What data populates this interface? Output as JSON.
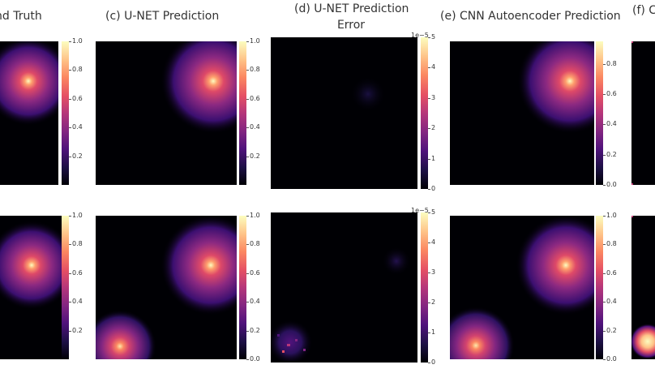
{
  "figure": {
    "columns": [
      {
        "id": "b",
        "title": [
          "nd Truth"
        ]
      },
      {
        "id": "c",
        "title": [
          "(c) U-NET Prediction"
        ]
      },
      {
        "id": "d",
        "title": [
          "(d) U-NET Prediction",
          "Error"
        ]
      },
      {
        "id": "e",
        "title": [
          "(e) CNN Autoencoder Prediction"
        ]
      },
      {
        "id": "f",
        "title": [
          "(f) C"
        ]
      }
    ],
    "colormap": "magma",
    "colorbars": {
      "b_top": {
        "ticks": [
          "1.0",
          "0.8",
          "0.6",
          "0.4",
          "0.2"
        ],
        "offset": ""
      },
      "c_top": {
        "ticks": [
          "1.0",
          "0.8",
          "0.6",
          "0.4",
          "0.2"
        ],
        "offset": ""
      },
      "d_top": {
        "ticks": [
          "5",
          "4",
          "3",
          "2",
          "1",
          "0"
        ],
        "offset": "1e−5"
      },
      "e_top": {
        "ticks": [
          "0.8",
          "0.6",
          "0.4",
          "0.2",
          "0.0"
        ],
        "offset": ""
      },
      "b_bot": {
        "ticks": [
          "1.0",
          "0.8",
          "0.6",
          "0.4",
          "0.2"
        ],
        "offset": ""
      },
      "c_bot": {
        "ticks": [
          "1.0",
          "0.8",
          "0.6",
          "0.4",
          "0.2",
          "0.0"
        ],
        "offset": ""
      },
      "d_bot": {
        "ticks": [
          "5",
          "4",
          "3",
          "2",
          "1",
          "0"
        ],
        "offset": "1e−5"
      },
      "e_bot": {
        "ticks": [
          "1.0",
          "0.8",
          "0.6",
          "0.4",
          "0.2",
          "0.0"
        ],
        "offset": ""
      }
    },
    "tick_values": {
      "b_top": [
        1.0,
        0.8,
        0.6,
        0.4,
        0.2
      ],
      "c_top": [
        1.0,
        0.8,
        0.6,
        0.4,
        0.2
      ],
      "d_top": [
        5,
        4,
        3,
        2,
        1,
        0
      ],
      "e_top": [
        0.8,
        0.6,
        0.4,
        0.2,
        0.0
      ],
      "b_bot": [
        1.0,
        0.8,
        0.6,
        0.4,
        0.2
      ],
      "c_bot": [
        1.0,
        0.8,
        0.6,
        0.4,
        0.2,
        0.0
      ],
      "d_bot": [
        5,
        4,
        3,
        2,
        1,
        0
      ],
      "e_bot": [
        1.0,
        0.8,
        0.6,
        0.4,
        0.2,
        0.0
      ]
    },
    "colorbar_max": {
      "b_top": 1.0,
      "c_top": 1.0,
      "d_top": 5,
      "e_top": 0.95,
      "b_bot": 1.0,
      "c_bot": 1.0,
      "d_bot": 5,
      "e_bot": 1.0
    }
  }
}
